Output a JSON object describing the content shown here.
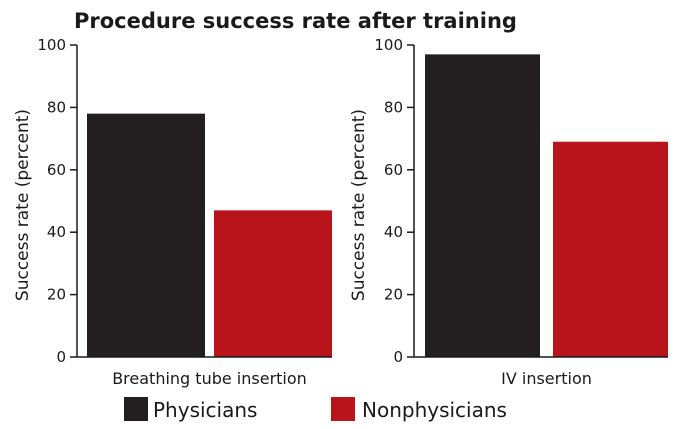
{
  "chart_data": {
    "type": "bar",
    "title": "Procedure success rate after training",
    "legend_position": "bottom",
    "series_legend": [
      {
        "name": "Physicians",
        "color": "#231f20"
      },
      {
        "name": "Nonphysicians",
        "color": "#b9141c"
      }
    ],
    "panels": [
      {
        "category": "Breathing tube insertion",
        "ylabel": "Success rate (percent)",
        "ylim": [
          0,
          100
        ],
        "yticks": [
          "0",
          "20",
          "40",
          "60",
          "80",
          "100"
        ],
        "values": {
          "Physicians": 78,
          "Nonphysicians": 47
        }
      },
      {
        "category": "IV insertion",
        "ylabel": "Success rate (percent)",
        "ylim": [
          0,
          100
        ],
        "yticks": [
          "0",
          "20",
          "40",
          "60",
          "80",
          "100"
        ],
        "values": {
          "Physicians": 97,
          "Nonphysicians": 69
        }
      }
    ],
    "grid": false
  }
}
